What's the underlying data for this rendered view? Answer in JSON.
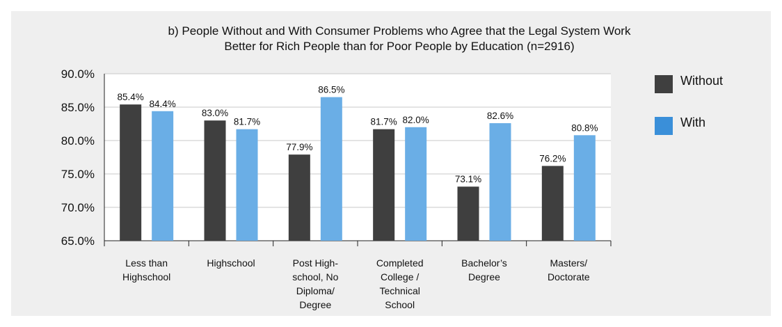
{
  "chart_data": {
    "type": "bar",
    "title": [
      "b) People Without and With Consumer Problems who Agree that the Legal System Work",
      "Better for Rich People than for Poor People by Education (n=2916)"
    ],
    "categories": [
      [
        "Less than",
        "Highschool"
      ],
      [
        "Highschool"
      ],
      [
        "Post High-",
        "school, No",
        "Diploma/",
        "Degree"
      ],
      [
        "Completed",
        "College /",
        "Technical",
        "School"
      ],
      [
        "Bachelor’s",
        "Degree"
      ],
      [
        "Masters/",
        "Doctorate"
      ]
    ],
    "series": [
      {
        "name": "Without",
        "color": "#3f3f3f",
        "values": [
          85.4,
          83.0,
          77.9,
          81.7,
          73.1,
          76.2
        ],
        "labels": [
          "85.4%",
          "83.0%",
          "77.9%",
          "81.7%",
          "73.1%",
          "76.2%"
        ]
      },
      {
        "name": "With",
        "color": "#6aaee6",
        "values": [
          84.4,
          81.7,
          86.5,
          82.0,
          82.6,
          80.8
        ],
        "labels": [
          "84.4%",
          "81.7%",
          "86.5%",
          "82.0%",
          "82.6%",
          "80.8%"
        ]
      }
    ],
    "yticks": [
      "90.0%",
      "85.0%",
      "80.0%",
      "75.0%",
      "70.0%",
      "65.0%"
    ],
    "ytick_values": [
      90,
      85,
      80,
      75,
      70,
      65
    ],
    "ylim": [
      65,
      90
    ],
    "grid": true,
    "legend_position": "right",
    "legend_swatch_colors": [
      "#3f3f3f",
      "#3a8fd9"
    ]
  }
}
